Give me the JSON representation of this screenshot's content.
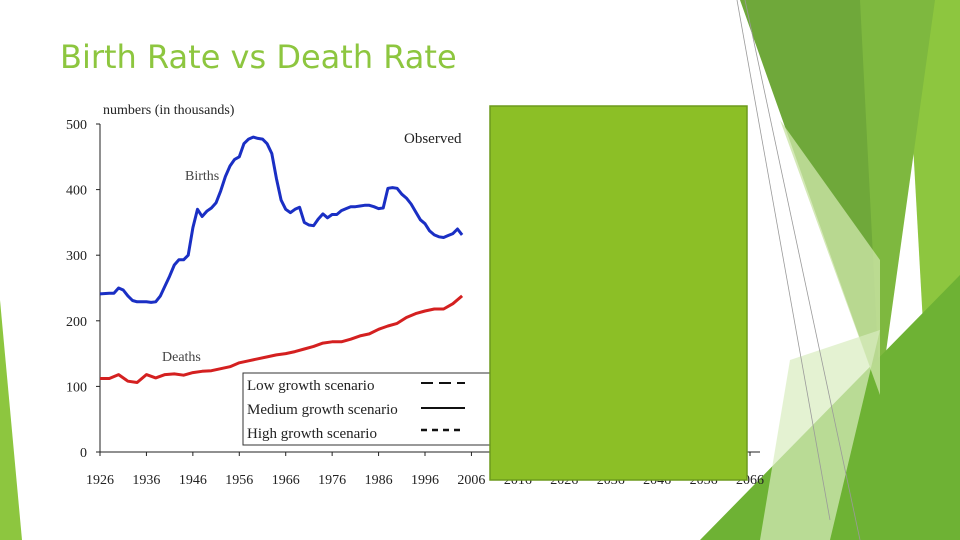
{
  "slide": {
    "title": "Birth Rate vs Death Rate"
  },
  "colors": {
    "accent": "#8dc63f",
    "births": "#1a2fc4",
    "deaths": "#d42020",
    "overlay": "#8cbf26",
    "overlay_border": "#6d9a1d"
  },
  "chart_data": {
    "type": "line",
    "ylabel": "numbers (in thousands)",
    "ylim": [
      0,
      500
    ],
    "yticks": [
      0,
      100,
      200,
      300,
      400,
      500
    ],
    "xlim": [
      1926,
      2066
    ],
    "xticks": [
      1926,
      1936,
      1946,
      1956,
      1966,
      1976,
      1986,
      1996,
      2006,
      2016,
      2026,
      2036,
      2046,
      2056,
      2066
    ],
    "xtick_labels": [
      "1926",
      "1936",
      "1946",
      "1956",
      "1966",
      "1976",
      "1986",
      "1996",
      "2006",
      "2016",
      "2026",
      "2036",
      "2046",
      "2056",
      "2066"
    ],
    "annotations": {
      "observed": "Observed",
      "births": "Births",
      "deaths": "Deaths"
    },
    "legend": {
      "placement": "bottom-center",
      "entries": [
        {
          "label": "Low growth scenario",
          "style": "long-dash"
        },
        {
          "label": "Medium growth scenario",
          "style": "solid"
        },
        {
          "label": "High growth scenario",
          "style": "short-dash"
        }
      ]
    },
    "series": [
      {
        "name": "Births",
        "x": [
          1926,
          1928,
          1929,
          1930,
          1931,
          1932,
          1933,
          1934,
          1935,
          1936,
          1937,
          1938,
          1939,
          1940,
          1941,
          1942,
          1943,
          1944,
          1945,
          1946,
          1947,
          1948,
          1949,
          1950,
          1951,
          1952,
          1953,
          1954,
          1955,
          1956,
          1957,
          1958,
          1959,
          1960,
          1961,
          1962,
          1963,
          1964,
          1965,
          1966,
          1967,
          1968,
          1969,
          1970,
          1971,
          1972,
          1973,
          1974,
          1975,
          1976,
          1977,
          1978,
          1979,
          1980,
          1981,
          1982,
          1983,
          1984,
          1985,
          1986,
          1987,
          1988,
          1989,
          1990,
          1991,
          1992,
          1993,
          1994,
          1995,
          1996,
          1997,
          1998,
          1999,
          2000,
          2001,
          2002,
          2003,
          2004
        ],
        "values": [
          241,
          242,
          242,
          250,
          247,
          238,
          231,
          229,
          229,
          229,
          228,
          229,
          238,
          253,
          268,
          285,
          293,
          293,
          300,
          342,
          370,
          359,
          367,
          372,
          380,
          398,
          420,
          436,
          446,
          450,
          470,
          477,
          480,
          478,
          477,
          470,
          455,
          417,
          384,
          370,
          365,
          370,
          373,
          350,
          346,
          345,
          355,
          363,
          357,
          362,
          362,
          368,
          371,
          374,
          374,
          375,
          376,
          376,
          374,
          371,
          372,
          402,
          403,
          402,
          393,
          387,
          378,
          366,
          354,
          348,
          337,
          331,
          328,
          327,
          330,
          333,
          340,
          331
        ]
      },
      {
        "name": "Deaths",
        "x": [
          1926,
          1928,
          1930,
          1932,
          1934,
          1936,
          1938,
          1940,
          1942,
          1944,
          1946,
          1948,
          1950,
          1952,
          1954,
          1956,
          1958,
          1960,
          1962,
          1964,
          1966,
          1968,
          1970,
          1972,
          1974,
          1976,
          1978,
          1980,
          1982,
          1984,
          1986,
          1988,
          1990,
          1992,
          1994,
          1996,
          1998,
          2000,
          2002,
          2004
        ],
        "values": [
          112,
          112,
          118,
          108,
          106,
          118,
          113,
          118,
          119,
          117,
          121,
          123,
          124,
          127,
          130,
          136,
          139,
          142,
          145,
          148,
          150,
          153,
          157,
          161,
          166,
          168,
          168,
          172,
          177,
          180,
          187,
          192,
          196,
          205,
          211,
          215,
          218,
          218,
          226,
          238
        ]
      }
    ]
  }
}
